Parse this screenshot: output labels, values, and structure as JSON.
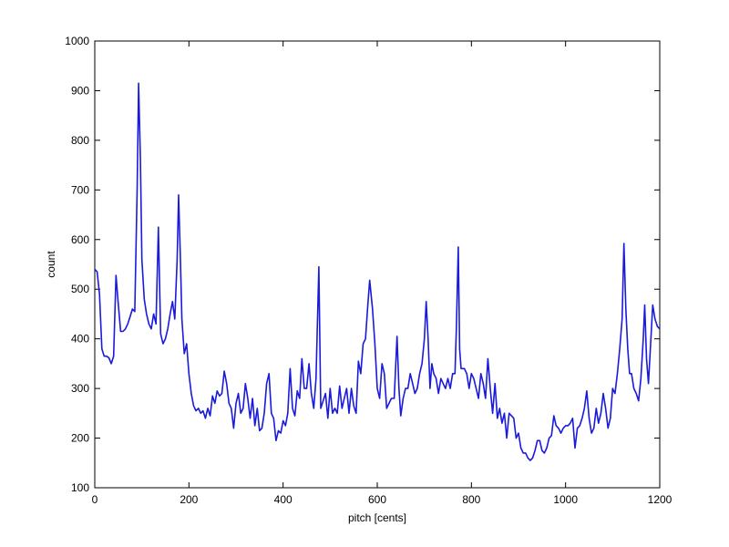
{
  "chart_data": {
    "type": "line",
    "xlabel": "pitch [cents]",
    "ylabel": "count",
    "color": "#1a1adc",
    "xlim": [
      0,
      1200
    ],
    "xticks": [
      0,
      200,
      400,
      600,
      800,
      1000,
      1200
    ],
    "ylim": [
      100,
      1000
    ],
    "yticks": [
      100,
      200,
      300,
      400,
      500,
      600,
      700,
      800,
      900,
      1000
    ],
    "x": [
      0,
      5,
      10,
      15,
      20,
      25,
      30,
      35,
      40,
      45,
      50,
      55,
      60,
      65,
      70,
      75,
      80,
      85,
      90,
      93,
      97,
      100,
      105,
      110,
      115,
      120,
      125,
      130,
      135,
      140,
      145,
      150,
      155,
      160,
      165,
      170,
      175,
      178,
      182,
      185,
      190,
      195,
      200,
      205,
      210,
      215,
      220,
      225,
      230,
      235,
      240,
      245,
      250,
      255,
      260,
      265,
      270,
      275,
      280,
      285,
      290,
      295,
      300,
      305,
      310,
      315,
      320,
      325,
      330,
      335,
      340,
      345,
      350,
      355,
      360,
      365,
      370,
      375,
      380,
      385,
      390,
      395,
      400,
      405,
      410,
      415,
      420,
      425,
      430,
      435,
      440,
      445,
      450,
      455,
      460,
      465,
      470,
      476,
      480,
      490,
      495,
      500,
      505,
      510,
      515,
      520,
      525,
      530,
      535,
      540,
      545,
      550,
      555,
      560,
      565,
      570,
      575,
      580,
      584,
      590,
      595,
      600,
      605,
      610,
      615,
      620,
      625,
      630,
      636,
      642,
      646,
      650,
      655,
      660,
      665,
      670,
      675,
      680,
      685,
      690,
      695,
      700,
      704,
      708,
      712,
      716,
      720,
      725,
      730,
      735,
      740,
      745,
      750,
      755,
      760,
      765,
      768,
      772,
      775,
      778,
      785,
      790,
      795,
      800,
      805,
      810,
      815,
      820,
      825,
      830,
      835,
      840,
      845,
      850,
      855,
      860,
      865,
      870,
      875,
      880,
      885,
      890,
      895,
      900,
      905,
      910,
      915,
      920,
      925,
      930,
      935,
      940,
      945,
      950,
      955,
      960,
      965,
      970,
      975,
      980,
      985,
      990,
      995,
      1000,
      1005,
      1010,
      1015,
      1020,
      1025,
      1030,
      1035,
      1040,
      1045,
      1050,
      1055,
      1060,
      1065,
      1070,
      1075,
      1080,
      1085,
      1090,
      1095,
      1100,
      1105,
      1110,
      1115,
      1120,
      1124,
      1128,
      1132,
      1136,
      1140,
      1145,
      1150,
      1155,
      1160,
      1165,
      1168,
      1172,
      1176,
      1180,
      1185,
      1190,
      1195,
      1200
    ],
    "values": [
      540,
      535,
      490,
      380,
      365,
      365,
      362,
      350,
      365,
      528,
      470,
      415,
      415,
      420,
      430,
      445,
      460,
      455,
      700,
      915,
      760,
      560,
      480,
      450,
      430,
      420,
      450,
      430,
      625,
      410,
      390,
      400,
      420,
      450,
      475,
      440,
      560,
      690,
      560,
      440,
      370,
      390,
      330,
      290,
      265,
      255,
      260,
      250,
      255,
      240,
      260,
      245,
      285,
      270,
      295,
      285,
      290,
      335,
      310,
      270,
      260,
      220,
      270,
      290,
      250,
      260,
      310,
      280,
      240,
      280,
      225,
      260,
      215,
      220,
      250,
      310,
      330,
      250,
      240,
      195,
      215,
      210,
      235,
      225,
      250,
      340,
      260,
      245,
      295,
      280,
      360,
      300,
      300,
      350,
      290,
      260,
      320,
      545,
      260,
      290,
      240,
      300,
      250,
      260,
      250,
      305,
      260,
      280,
      300,
      250,
      300,
      265,
      250,
      355,
      330,
      390,
      400,
      470,
      518,
      460,
      390,
      300,
      280,
      350,
      330,
      260,
      270,
      280,
      280,
      405,
      300,
      245,
      280,
      300,
      300,
      330,
      310,
      290,
      300,
      330,
      350,
      400,
      475,
      400,
      300,
      350,
      330,
      320,
      290,
      320,
      310,
      300,
      320,
      300,
      330,
      330,
      420,
      585,
      380,
      340,
      340,
      330,
      300,
      330,
      320,
      300,
      280,
      330,
      310,
      280,
      360,
      300,
      250,
      310,
      240,
      260,
      230,
      250,
      200,
      250,
      245,
      240,
      200,
      210,
      180,
      170,
      170,
      160,
      155,
      160,
      175,
      195,
      195,
      175,
      170,
      180,
      200,
      205,
      245,
      225,
      220,
      210,
      220,
      225,
      225,
      230,
      240,
      180,
      220,
      225,
      240,
      260,
      295,
      240,
      210,
      220,
      260,
      230,
      250,
      290,
      260,
      220,
      240,
      300,
      290,
      330,
      380,
      440,
      592,
      460,
      380,
      330,
      330,
      300,
      290,
      275,
      320,
      400,
      468,
      360,
      310,
      380,
      468,
      440,
      425,
      420
    ]
  }
}
